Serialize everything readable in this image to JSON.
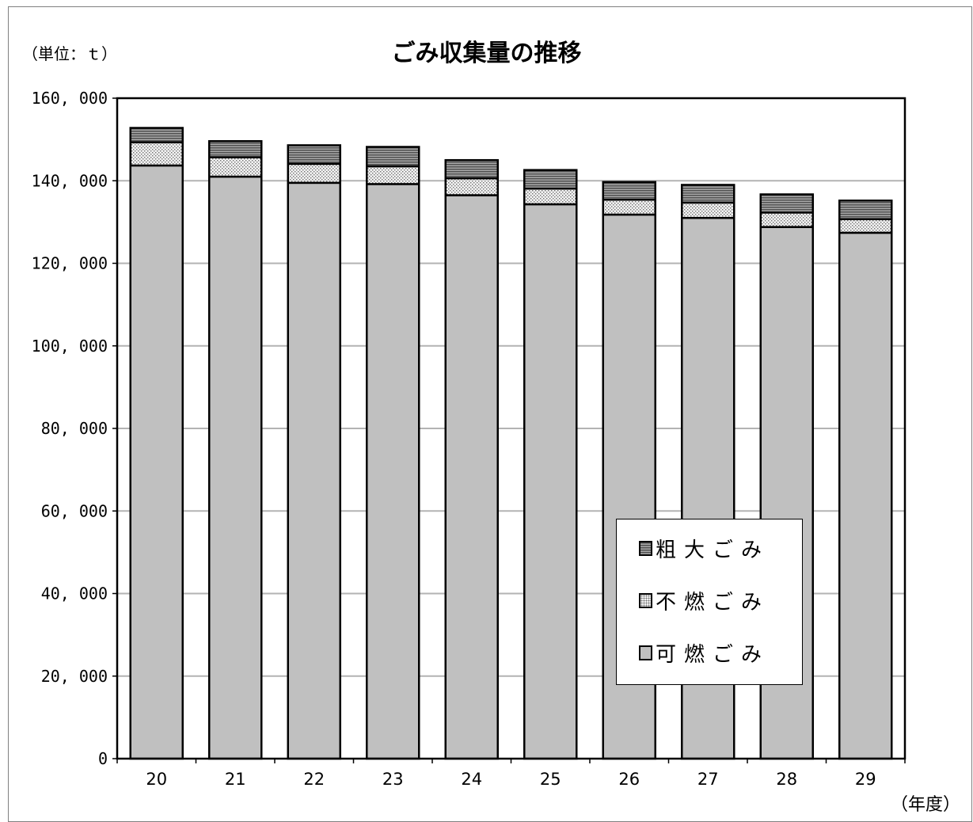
{
  "chart_data": {
    "type": "bar",
    "stacked": true,
    "title": "ごみ収集量の推移",
    "unit_label": "（単位：ｔ）",
    "xlabel": "（年度）",
    "ylabel": "",
    "categories": [
      "20",
      "21",
      "22",
      "23",
      "24",
      "25",
      "26",
      "27",
      "28",
      "29"
    ],
    "ylim": [
      0,
      160000
    ],
    "yticks": [
      0,
      20000,
      40000,
      60000,
      80000,
      100000,
      120000,
      140000,
      160000
    ],
    "ytick_labels": [
      "0",
      "20, 000",
      "40, 000",
      "60, 000",
      "80, 000",
      "100, 000",
      "120, 000",
      "140, 000",
      "160, 000"
    ],
    "grid": true,
    "legend_position": "bottom-right",
    "series": [
      {
        "name": "可燃ごみ",
        "pattern": "solid-gray",
        "color": "#c0c0c0",
        "values": [
          143700,
          141000,
          139500,
          139200,
          136500,
          134300,
          131800,
          131000,
          128800,
          127400
        ]
      },
      {
        "name": "不燃ごみ",
        "pattern": "dots",
        "color": "#e6e6e6",
        "values": [
          5600,
          4700,
          4600,
          4300,
          4100,
          3800,
          3600,
          3700,
          3500,
          3300
        ]
      },
      {
        "name": "粗大ごみ",
        "pattern": "horizontal-stripes",
        "color": "#7a7a7a",
        "values": [
          3500,
          3900,
          4500,
          4700,
          4400,
          4500,
          4300,
          4300,
          4400,
          4500
        ]
      }
    ],
    "legend": [
      "粗大ごみ",
      "不燃ごみ",
      "可燃ごみ"
    ]
  }
}
